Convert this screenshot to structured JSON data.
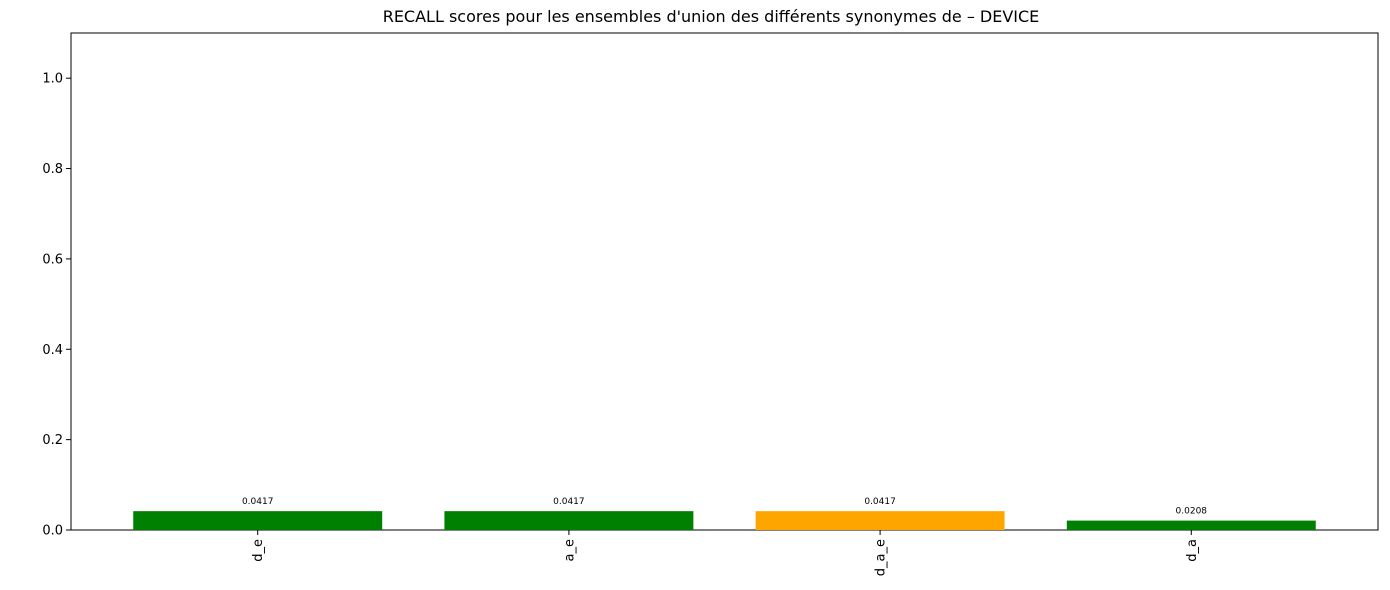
{
  "chart_data": {
    "type": "bar",
    "title": "RECALL scores pour les ensembles d'union des différents synonymes de – DEVICE",
    "xlabel": "",
    "ylabel": "",
    "categories": [
      "d_e",
      "a_e",
      "d_a_e",
      "d_a"
    ],
    "values": [
      0.0417,
      0.0417,
      0.0417,
      0.0208
    ],
    "value_labels": [
      "0.0417",
      "0.0417",
      "0.0417",
      "0.0208"
    ],
    "bar_colors": [
      "#008000",
      "#008000",
      "#FFA500",
      "#008000"
    ],
    "ylim": [
      0,
      1.1
    ],
    "yticks": [
      0.0,
      0.2,
      0.4,
      0.6,
      0.8,
      1.0
    ],
    "ytick_labels": [
      "0.0",
      "0.2",
      "0.4",
      "0.6",
      "0.8",
      "1.0"
    ],
    "grid": false,
    "legend": "none"
  }
}
